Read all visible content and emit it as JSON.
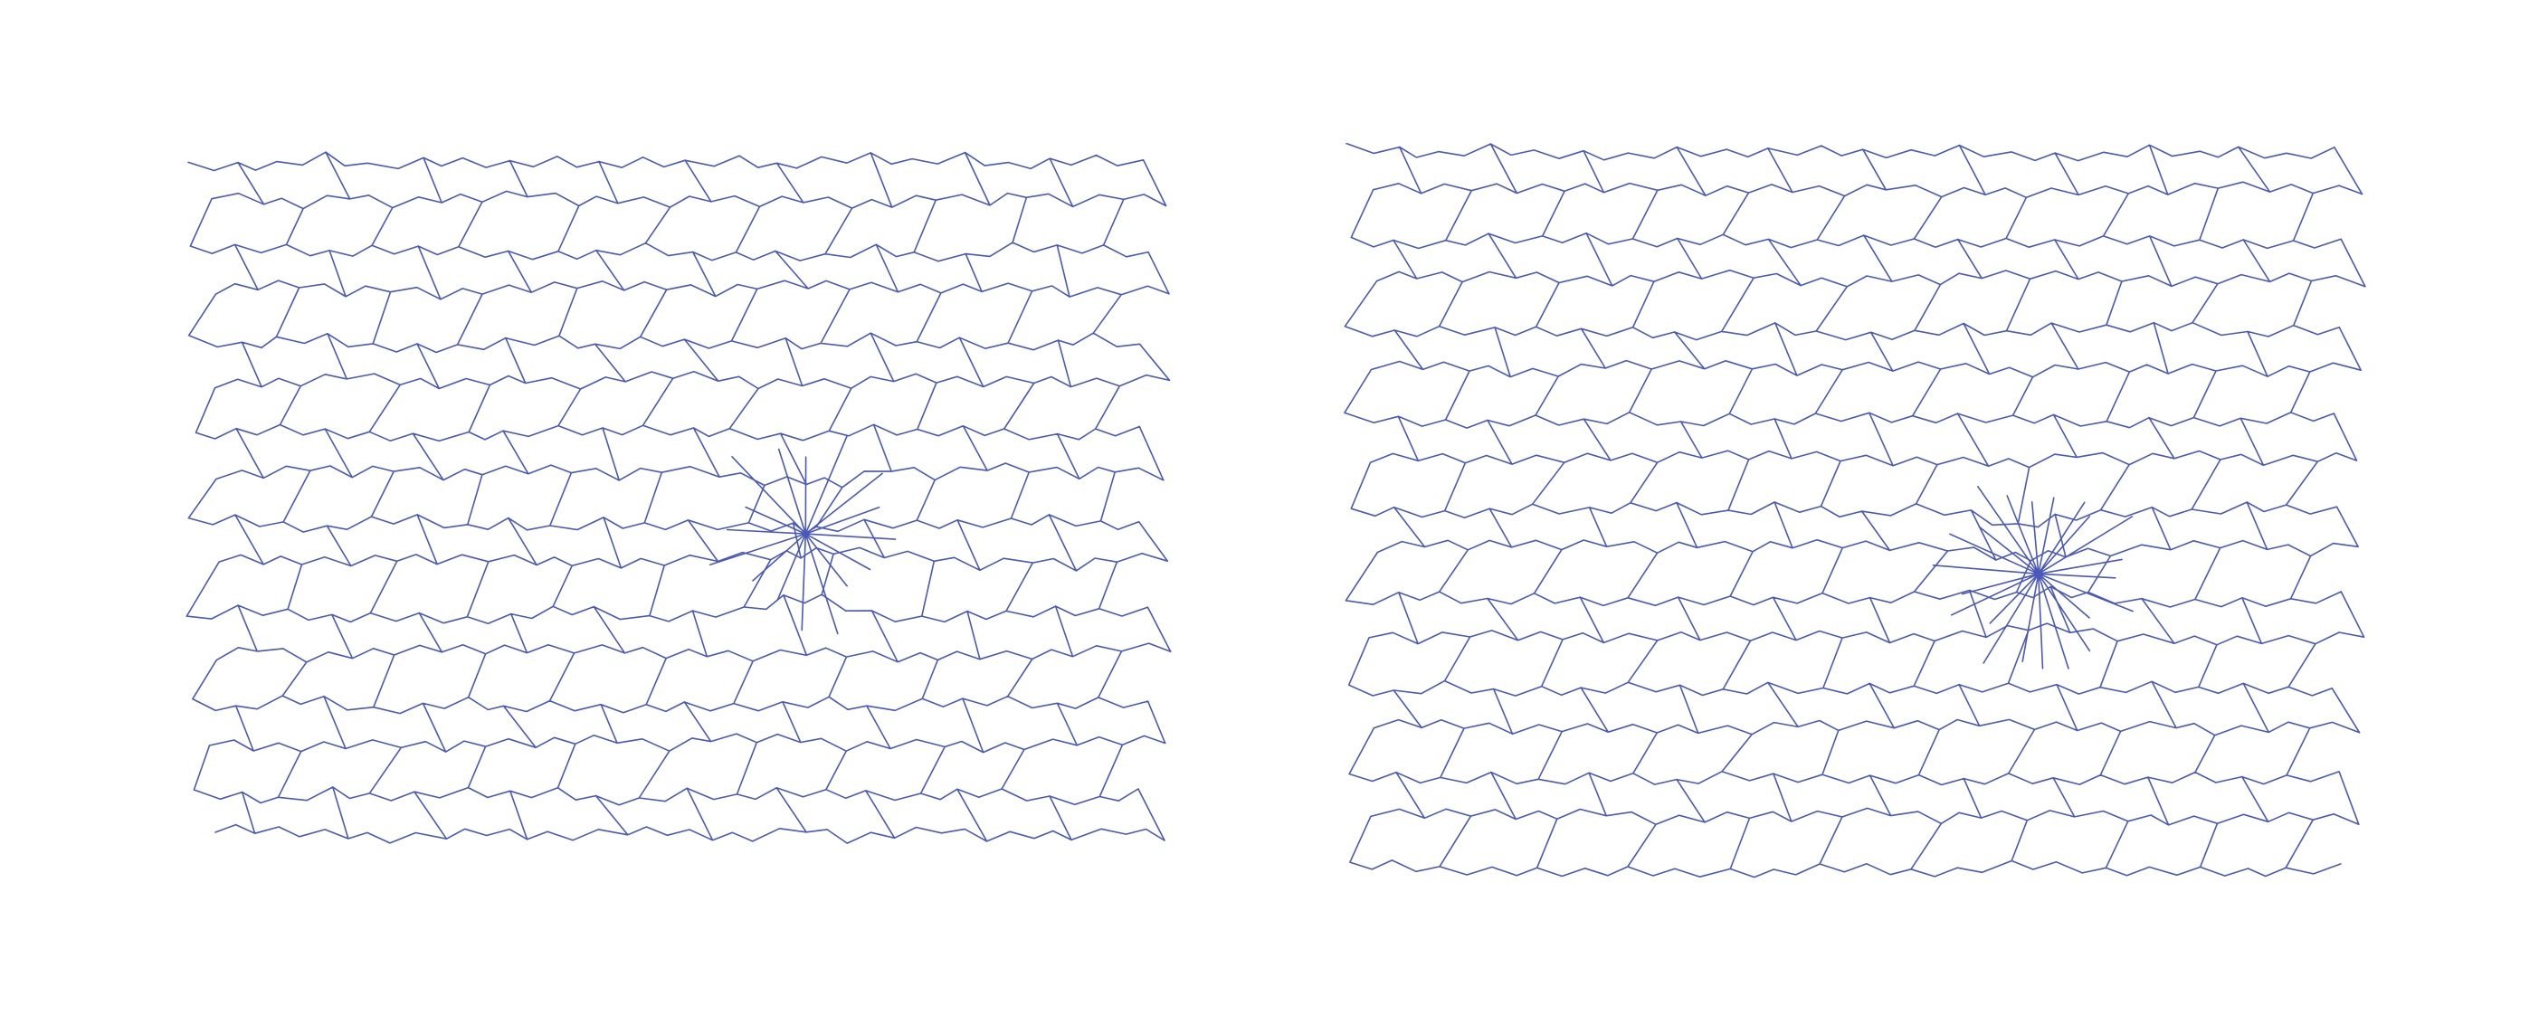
{
  "colors": {
    "background": "#ffffff",
    "edge": "#4a58b8"
  },
  "panels": [
    {
      "id": "left",
      "description_kind": "polygonal cell mesh with radial fan centre",
      "mesh": {
        "columns": 21,
        "rows": 15,
        "jitter": 0.26,
        "seed": 7,
        "singularity": {
          "col": 13.3,
          "row": 8.3,
          "spokes": 16
        }
      }
    },
    {
      "id": "right",
      "description_kind": "polygonal cell mesh with radial fan centre",
      "mesh": {
        "columns": 21,
        "rows": 16,
        "jitter": 0.22,
        "seed": 19,
        "singularity": {
          "col": 14.4,
          "row": 9.5,
          "spokes": 22
        }
      }
    }
  ]
}
